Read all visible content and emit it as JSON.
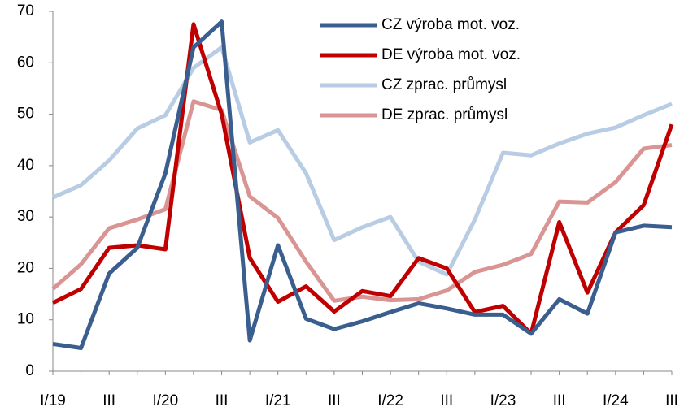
{
  "chart_data": {
    "type": "line",
    "categories": [
      "I/19",
      null,
      "III",
      null,
      "I/20",
      null,
      "III",
      null,
      "I/21",
      null,
      "III",
      null,
      "I/22",
      null,
      "III",
      null,
      "I/23",
      null,
      "III",
      null,
      "I/24",
      null,
      "III"
    ],
    "series": [
      {
        "name": "CZ výroba mot. voz.",
        "color": "#3a5f8f",
        "values": [
          5.3,
          4.5,
          19,
          24,
          38.5,
          63,
          68,
          6,
          24.5,
          10.2,
          8.2,
          9.7,
          11.5,
          13.2,
          12.2,
          11,
          11,
          7.3,
          14,
          11.2,
          27,
          28.3,
          28
        ]
      },
      {
        "name": "DE výroba mot. voz.",
        "color": "#c00000",
        "values": [
          13.3,
          16,
          24,
          24.5,
          23.7,
          67.5,
          50,
          22,
          13.5,
          16.5,
          11.6,
          15.6,
          14.6,
          22,
          20,
          11.5,
          12.7,
          7.3,
          29,
          15.3,
          27,
          32.3,
          48
        ]
      },
      {
        "name": "CZ zprac. průmysl",
        "color": "#b8cce4",
        "values": [
          33.8,
          36.2,
          41,
          47.2,
          49.8,
          59,
          63,
          44.5,
          46.9,
          38.5,
          25.5,
          28,
          30,
          21.3,
          18.8,
          29.5,
          42.5,
          42,
          44.3,
          46.2,
          47.4,
          49.8,
          52
        ]
      },
      {
        "name": "DE zprac. průmysl",
        "color": "#d99594",
        "values": [
          16,
          20.8,
          27.8,
          29.5,
          31.5,
          52.5,
          50.8,
          34,
          29.8,
          21.3,
          13.7,
          14.5,
          13.8,
          14,
          15.7,
          19.3,
          20.7,
          22.8,
          33,
          32.8,
          36.8,
          43.3,
          44
        ]
      }
    ],
    "ylim": [
      0,
      70
    ],
    "yticks": [
      0,
      10,
      20,
      30,
      40,
      50,
      60,
      70
    ],
    "grid": false,
    "legend": "upper right"
  }
}
